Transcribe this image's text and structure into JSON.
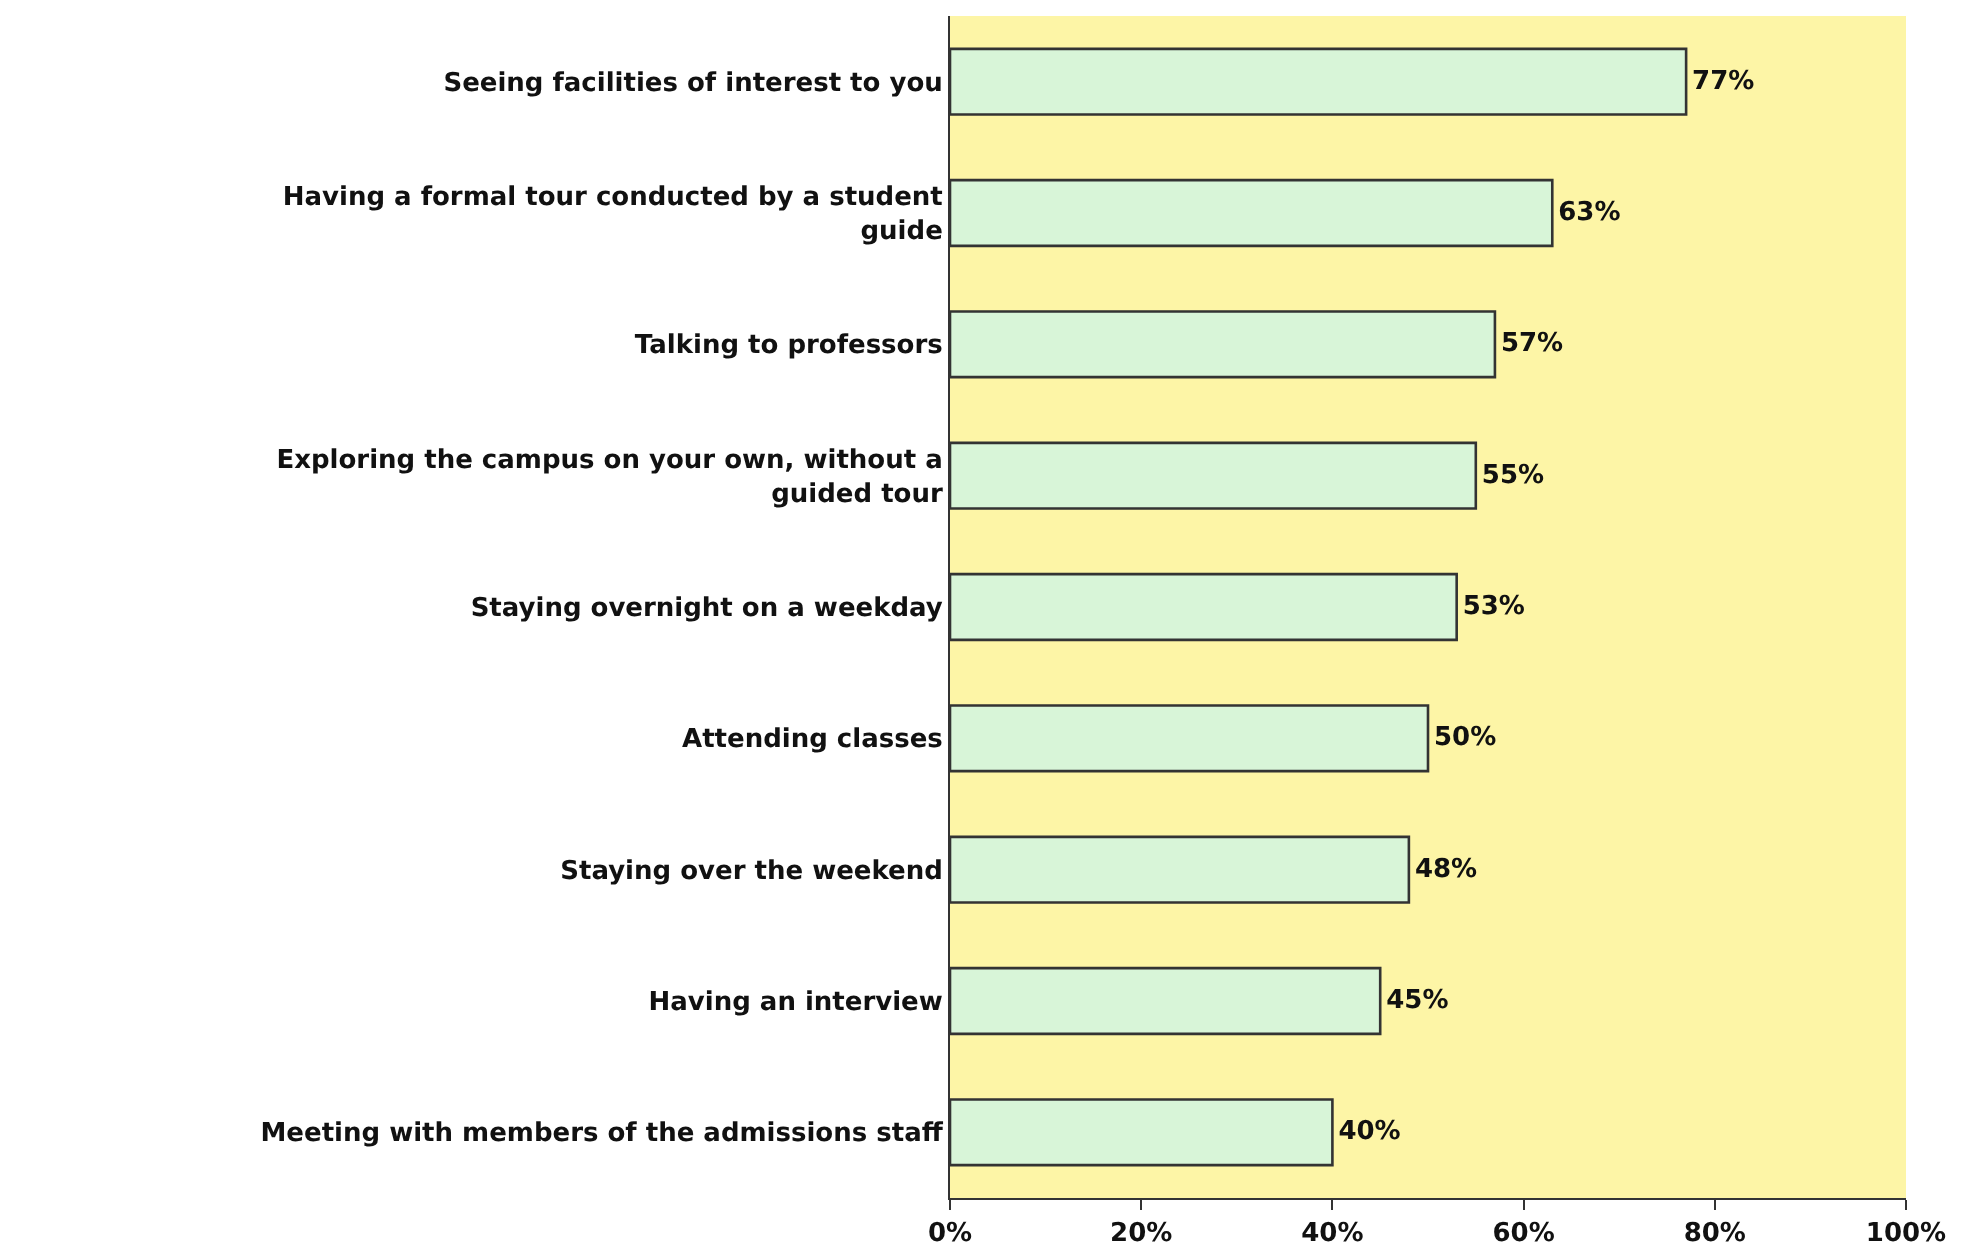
{
  "chart_data": {
    "type": "bar",
    "orientation": "horizontal",
    "categories": [
      "Seeing facilities of interest to you",
      "Having a formal tour conducted by a student guide",
      "Talking to professors",
      "Exploring the campus on your own, without a guided tour",
      "Staying overnight on a weekday",
      "Attending classes",
      "Staying over the weekend",
      "Having an interview",
      "Meeting with members of the admissions staff"
    ],
    "values": [
      77,
      63,
      57,
      55,
      53,
      50,
      48,
      45,
      40
    ],
    "value_labels": [
      "77%",
      "63%",
      "57%",
      "55%",
      "53%",
      "50%",
      "48%",
      "45%",
      "40%"
    ],
    "color": "#d8f5d8",
    "xlim": [
      0,
      100
    ],
    "xticks": [
      {
        "value": 0,
        "label": "0%"
      },
      {
        "value": 20,
        "label": "20%"
      },
      {
        "value": 40,
        "label": "40%"
      },
      {
        "value": 60,
        "label": "60%"
      },
      {
        "value": 80,
        "label": "80%"
      },
      {
        "value": 100,
        "label": "100%"
      }
    ],
    "grid": false
  }
}
